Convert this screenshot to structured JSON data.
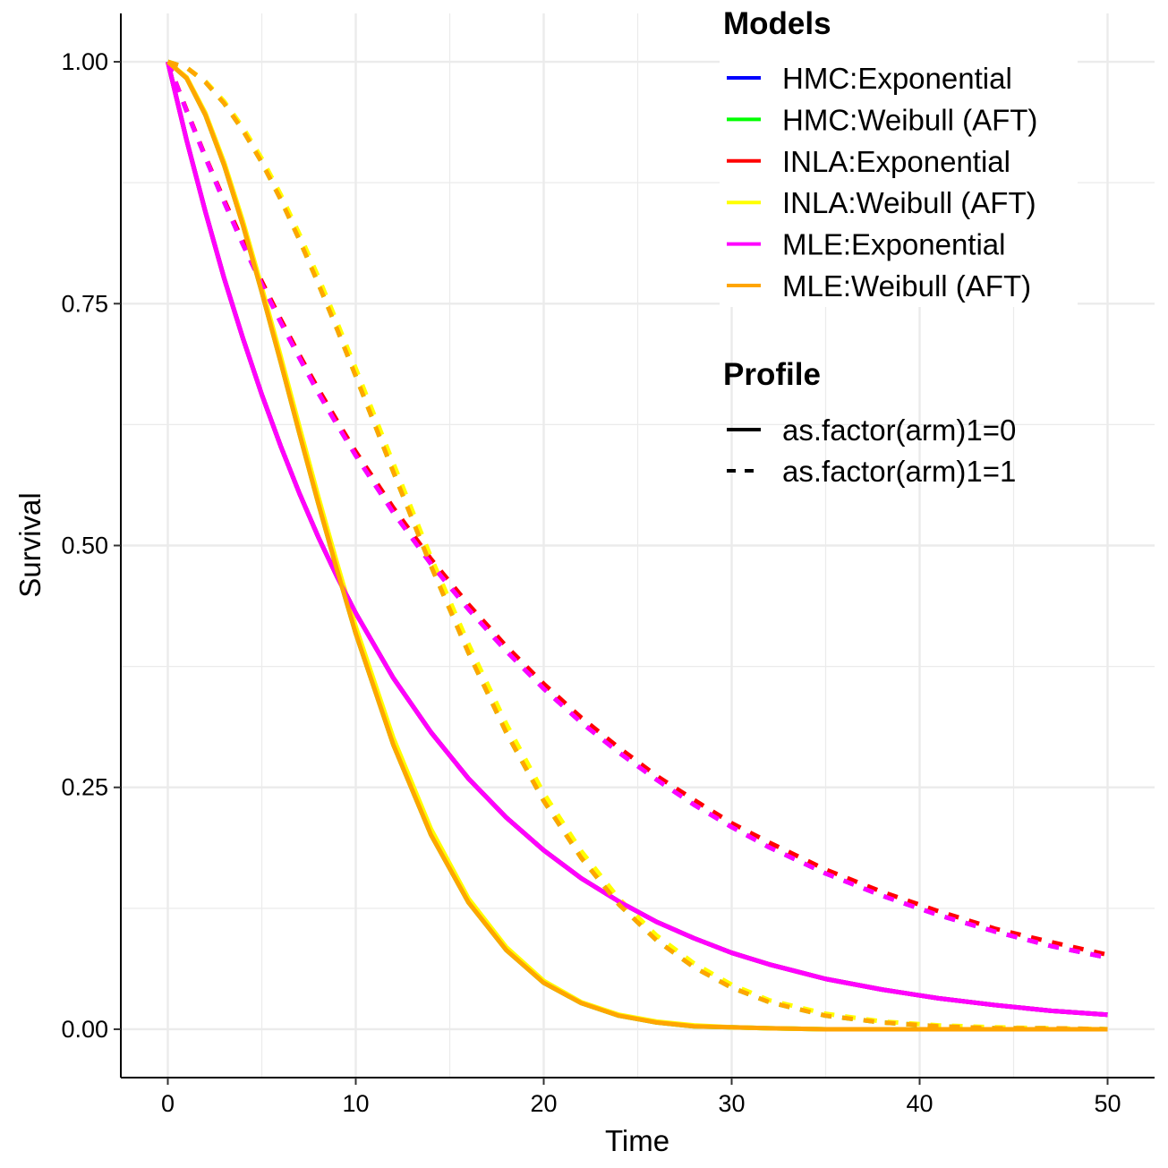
{
  "chart_data": {
    "type": "line",
    "xlabel": "Time",
    "ylabel": "Survival",
    "xlim": [
      -2.5,
      52.5
    ],
    "ylim": [
      -0.05,
      1.05
    ],
    "x_ticks": [
      0,
      10,
      20,
      30,
      40,
      50
    ],
    "x_tick_labels": [
      "0",
      "10",
      "20",
      "30",
      "40",
      "50"
    ],
    "y_ticks": [
      0,
      0.25,
      0.5,
      0.75,
      1.0
    ],
    "y_tick_labels": [
      "0.00",
      "0.25",
      "0.50",
      "0.75",
      "1.00"
    ],
    "grid": true,
    "legend_placement": "top-right",
    "legends": [
      {
        "title": "Models",
        "items": [
          {
            "label": "HMC:Exponential",
            "color": "#0000ff"
          },
          {
            "label": "HMC:Weibull (AFT)",
            "color": "#00ff00"
          },
          {
            "label": "INLA:Exponential",
            "color": "#ff0000"
          },
          {
            "label": "INLA:Weibull (AFT)",
            "color": "#ffff00"
          },
          {
            "label": "MLE:Exponential",
            "color": "#ff00ff"
          },
          {
            "label": "MLE:Weibull (AFT)",
            "color": "#ffa500"
          }
        ]
      },
      {
        "title": "Profile",
        "items": [
          {
            "label": "as.factor(arm)1=0",
            "linetype": "solid"
          },
          {
            "label": "as.factor(arm)1=1",
            "linetype": "dashed"
          }
        ]
      }
    ],
    "x": [
      0,
      1,
      2,
      3,
      4,
      5,
      6,
      7,
      8,
      9,
      10,
      12,
      14,
      16,
      18,
      20,
      22,
      24,
      26,
      28,
      30,
      32,
      35,
      38,
      41,
      44,
      47,
      50
    ],
    "series": [
      {
        "model": "HMC:Exponential",
        "profile": "as.factor(arm)1=0",
        "color": "#0000ff",
        "dash": "solid",
        "values": [
          1.0,
          0.919,
          0.845,
          0.776,
          0.714,
          0.656,
          0.603,
          0.554,
          0.509,
          0.468,
          0.43,
          0.363,
          0.307,
          0.259,
          0.219,
          0.185,
          0.156,
          0.132,
          0.111,
          0.094,
          0.079,
          0.067,
          0.052,
          0.041,
          0.032,
          0.025,
          0.019,
          0.015
        ]
      },
      {
        "model": "HMC:Exponential",
        "profile": "as.factor(arm)1=1",
        "color": "#0000ff",
        "dash": "dashed",
        "values": [
          1.0,
          0.949,
          0.901,
          0.855,
          0.811,
          0.77,
          0.731,
          0.694,
          0.658,
          0.625,
          0.593,
          0.534,
          0.481,
          0.434,
          0.391,
          0.352,
          0.317,
          0.286,
          0.258,
          0.232,
          0.209,
          0.188,
          0.161,
          0.138,
          0.118,
          0.101,
          0.086,
          0.074
        ]
      },
      {
        "model": "HMC:Weibull (AFT)",
        "profile": "as.factor(arm)1=0",
        "color": "#00ff00",
        "dash": "solid",
        "values": [
          1.0,
          0.983,
          0.945,
          0.893,
          0.831,
          0.762,
          0.69,
          0.616,
          0.544,
          0.475,
          0.409,
          0.294,
          0.201,
          0.131,
          0.082,
          0.048,
          0.027,
          0.014,
          0.007,
          0.003,
          0.002,
          0.001,
          0.0,
          0.0,
          0.0,
          0.0,
          0.0,
          0.0
        ]
      },
      {
        "model": "HMC:Weibull (AFT)",
        "profile": "as.factor(arm)1=1",
        "color": "#00ff00",
        "dash": "dashed",
        "values": [
          1.0,
          0.994,
          0.979,
          0.957,
          0.929,
          0.896,
          0.858,
          0.816,
          0.771,
          0.724,
          0.675,
          0.576,
          0.479,
          0.389,
          0.307,
          0.236,
          0.177,
          0.129,
          0.092,
          0.064,
          0.043,
          0.028,
          0.014,
          0.007,
          0.003,
          0.001,
          0.001,
          0.0
        ]
      },
      {
        "model": "INLA:Exponential",
        "profile": "as.factor(arm)1=0",
        "color": "#ff0000",
        "dash": "solid",
        "values": [
          1.0,
          0.919,
          0.845,
          0.776,
          0.714,
          0.656,
          0.603,
          0.554,
          0.509,
          0.468,
          0.43,
          0.363,
          0.307,
          0.259,
          0.219,
          0.185,
          0.156,
          0.132,
          0.111,
          0.094,
          0.079,
          0.067,
          0.052,
          0.041,
          0.032,
          0.025,
          0.019,
          0.015
        ]
      },
      {
        "model": "INLA:Exponential",
        "profile": "as.factor(arm)1=1",
        "color": "#ff0000",
        "dash": "dashed",
        "values": [
          1.0,
          0.95,
          0.902,
          0.857,
          0.814,
          0.773,
          0.734,
          0.697,
          0.662,
          0.629,
          0.597,
          0.539,
          0.486,
          0.439,
          0.396,
          0.357,
          0.322,
          0.291,
          0.262,
          0.237,
          0.213,
          0.193,
          0.165,
          0.142,
          0.122,
          0.104,
          0.09,
          0.077
        ]
      },
      {
        "model": "INLA:Weibull (AFT)",
        "profile": "as.factor(arm)1=0",
        "color": "#ffff00",
        "dash": "solid",
        "values": [
          1.0,
          0.984,
          0.947,
          0.896,
          0.835,
          0.767,
          0.696,
          0.623,
          0.551,
          0.482,
          0.416,
          0.301,
          0.207,
          0.135,
          0.085,
          0.05,
          0.028,
          0.015,
          0.008,
          0.004,
          0.002,
          0.001,
          0.0,
          0.0,
          0.0,
          0.0,
          0.0,
          0.0
        ]
      },
      {
        "model": "INLA:Weibull (AFT)",
        "profile": "as.factor(arm)1=1",
        "color": "#ffff00",
        "dash": "dashed",
        "values": [
          1.0,
          0.994,
          0.98,
          0.959,
          0.932,
          0.9,
          0.863,
          0.822,
          0.778,
          0.731,
          0.683,
          0.585,
          0.488,
          0.398,
          0.316,
          0.244,
          0.184,
          0.135,
          0.097,
          0.068,
          0.046,
          0.03,
          0.016,
          0.008,
          0.004,
          0.002,
          0.001,
          0.0
        ]
      },
      {
        "model": "MLE:Exponential",
        "profile": "as.factor(arm)1=0",
        "color": "#ff00ff",
        "dash": "solid",
        "values": [
          1.0,
          0.919,
          0.845,
          0.776,
          0.714,
          0.656,
          0.603,
          0.554,
          0.509,
          0.468,
          0.43,
          0.363,
          0.307,
          0.259,
          0.219,
          0.185,
          0.156,
          0.132,
          0.111,
          0.094,
          0.079,
          0.067,
          0.052,
          0.041,
          0.032,
          0.025,
          0.019,
          0.015
        ]
      },
      {
        "model": "MLE:Exponential",
        "profile": "as.factor(arm)1=1",
        "color": "#ff00ff",
        "dash": "dashed",
        "values": [
          1.0,
          0.949,
          0.901,
          0.855,
          0.811,
          0.77,
          0.731,
          0.694,
          0.658,
          0.625,
          0.593,
          0.534,
          0.481,
          0.434,
          0.391,
          0.352,
          0.317,
          0.286,
          0.258,
          0.232,
          0.209,
          0.188,
          0.161,
          0.138,
          0.118,
          0.101,
          0.086,
          0.074
        ]
      },
      {
        "model": "MLE:Weibull (AFT)",
        "profile": "as.factor(arm)1=0",
        "color": "#ffa500",
        "dash": "solid",
        "values": [
          1.0,
          0.983,
          0.945,
          0.893,
          0.831,
          0.762,
          0.69,
          0.616,
          0.544,
          0.475,
          0.409,
          0.294,
          0.201,
          0.131,
          0.082,
          0.048,
          0.027,
          0.014,
          0.007,
          0.003,
          0.002,
          0.001,
          0.0,
          0.0,
          0.0,
          0.0,
          0.0,
          0.0
        ]
      },
      {
        "model": "MLE:Weibull (AFT)",
        "profile": "as.factor(arm)1=1",
        "color": "#ffa500",
        "dash": "dashed",
        "values": [
          1.0,
          0.994,
          0.979,
          0.957,
          0.929,
          0.896,
          0.858,
          0.816,
          0.771,
          0.724,
          0.675,
          0.576,
          0.479,
          0.389,
          0.307,
          0.236,
          0.177,
          0.129,
          0.092,
          0.064,
          0.043,
          0.028,
          0.014,
          0.007,
          0.003,
          0.001,
          0.001,
          0.0
        ]
      }
    ]
  }
}
